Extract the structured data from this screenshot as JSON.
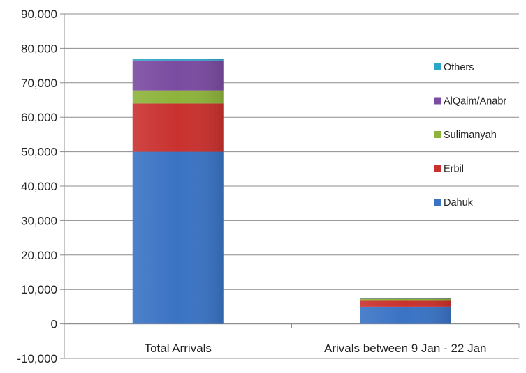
{
  "chart_data": {
    "type": "bar",
    "stacked": true,
    "categories": [
      "Total Arrivals",
      "Arivals between 9 Jan - 22  Jan"
    ],
    "series": [
      {
        "name": "Dahuk",
        "values": [
          50000,
          5000
        ],
        "color": "#3A73C4"
      },
      {
        "name": "Erbil",
        "values": [
          14000,
          1700
        ],
        "color": "#C9312E"
      },
      {
        "name": "Sulimanyah",
        "values": [
          3800,
          600
        ],
        "color": "#8DB33A"
      },
      {
        "name": "AlQaim/Anabr",
        "values": [
          8700,
          150
        ],
        "color": "#7A4BA0"
      },
      {
        "name": "Others",
        "values": [
          400,
          50
        ],
        "color": "#2AA7C9"
      }
    ],
    "ylim": [
      -10000,
      90000
    ],
    "yticks": [
      -10000,
      0,
      10000,
      20000,
      30000,
      40000,
      50000,
      60000,
      70000,
      80000,
      90000
    ],
    "ytick_labels": [
      "-10,000",
      "0",
      "10,000",
      "20,000",
      "30,000",
      "40,000",
      "50,000",
      "60,000",
      "70,000",
      "80,000",
      "90,000"
    ],
    "grid": true,
    "legend_position": "right",
    "title": "",
    "xlabel": "",
    "ylabel": ""
  }
}
